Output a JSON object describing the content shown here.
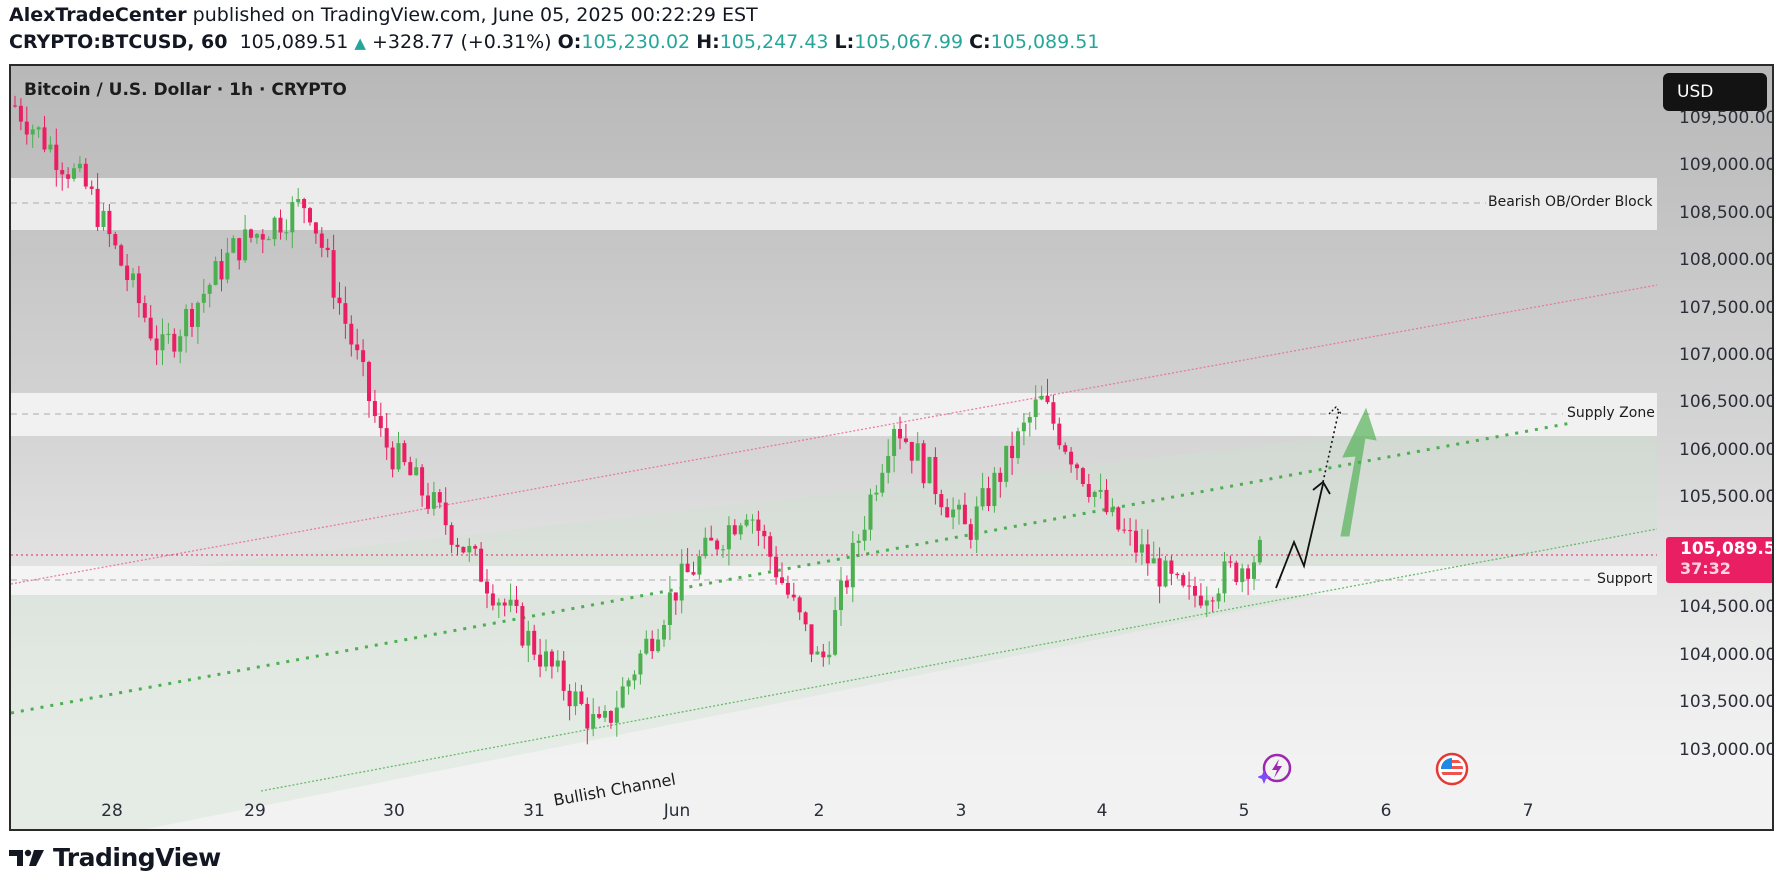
{
  "header": {
    "author": "AlexTradeCenter",
    "published_text": "published on TradingView.com, June 05, 2025 00:22:29 EST",
    "symbol": "CRYPTO:BTCUSD, 60",
    "last": "105,089.51",
    "change_arrow": "▲",
    "change": "+328.77 (+0.31%)",
    "o_label": "O:",
    "o": "105,230.02",
    "h_label": "H:",
    "h": "105,247.43",
    "l_label": "L:",
    "l": "105,067.99",
    "c_label": "C:",
    "c": "105,089.51"
  },
  "chart": {
    "title": "Bitcoin / U.S. Dollar · 1h · CRYPTO",
    "currency_button": "USD",
    "last_price_tag": "105,089.51",
    "countdown": "37:32",
    "colors": {
      "up": "#4caf50",
      "down": "#e91e63",
      "last_price": "#e91e63",
      "support_line": "#66bb6a",
      "resistance_line": "#e57399"
    },
    "zone_labels": {
      "bearish_ob": "Bearish OB/Order Block",
      "supply": "Supply Zone",
      "support": "Support",
      "channel": "Bullish Channel"
    },
    "price_axis": [
      "109,500.00",
      "109,000.00",
      "108,500.00",
      "108,000.00",
      "107,500.00",
      "107,000.00",
      "106,500.00",
      "106,000.00",
      "105,500.00",
      "104,500.00",
      "104,000.00",
      "103,500.00",
      "103,000.00"
    ],
    "time_axis": [
      "28",
      "29",
      "30",
      "31",
      "Jun",
      "2",
      "3",
      "4",
      "5",
      "6",
      "7"
    ],
    "event_icons": [
      "lightning-event-icon",
      "us-flag-event-icon"
    ]
  },
  "footer": {
    "brand": "TradingView"
  },
  "chart_data": {
    "type": "candlestick",
    "title": "Bitcoin / U.S. Dollar · 1h · CRYPTO",
    "xlabel": "",
    "ylabel": "USD",
    "x_ticks": [
      "28",
      "29",
      "30",
      "31",
      "Jun",
      "2",
      "3",
      "4",
      "5",
      "6",
      "7"
    ],
    "y_ticks": [
      103000,
      103500,
      104000,
      104500,
      105000,
      105500,
      106000,
      106500,
      107000,
      107500,
      108000,
      108500,
      109000,
      109500
    ],
    "ylim": [
      102600,
      110200
    ],
    "last_price": 105089.51,
    "ohlc_last": {
      "open": 105230.02,
      "high": 105247.43,
      "low": 105067.99,
      "close": 105089.51,
      "change": 328.77,
      "change_pct": 0.31
    },
    "zones": [
      {
        "name": "Bearish OB/Order Block",
        "from": 108500,
        "to": 109050,
        "line": 108750
      },
      {
        "name": "Supply Zone",
        "from": 106300,
        "to": 106750,
        "line": 106550
      },
      {
        "name": "Support",
        "from": 104650,
        "to": 104950,
        "line": 104800
      }
    ],
    "channel": {
      "name": "Bullish Channel",
      "lower_start": [
        "May 29",
        102600
      ],
      "lower_end": [
        "Jun 7",
        105350
      ],
      "upper_start": [
        "May 27",
        104800
      ],
      "upper_end": [
        "Jun 7",
        107900
      ],
      "mid_dotted_start": [
        "May 27",
        103400
      ],
      "mid_dotted_end": [
        "Jun 6",
        106400
      ]
    },
    "approx_path": [
      {
        "date": "May 27",
        "price": 109800
      },
      {
        "date": "May 28",
        "price": 108900
      },
      {
        "date": "May 28 PM",
        "price": 107200
      },
      {
        "date": "May 29",
        "price": 108300
      },
      {
        "date": "May 29 PM",
        "price": 108800
      },
      {
        "date": "May 30",
        "price": 106300
      },
      {
        "date": "May 30 PM",
        "price": 105300
      },
      {
        "date": "May 31",
        "price": 104200
      },
      {
        "date": "May 31 AM",
        "price": 103200
      },
      {
        "date": "Jun 1",
        "price": 104700
      },
      {
        "date": "Jun 2",
        "price": 105600
      },
      {
        "date": "Jun 2 PM",
        "price": 103900
      },
      {
        "date": "Jun 3",
        "price": 106500
      },
      {
        "date": "Jun 3 PM",
        "price": 105300
      },
      {
        "date": "Jun 4",
        "price": 106700
      },
      {
        "date": "Jun 4 PM",
        "price": 105400
      },
      {
        "date": "Jun 5",
        "price": 104600
      },
      {
        "date": "Jun 5 now",
        "price": 105089.51
      }
    ],
    "projection": "zig-zag up from Support toward Supply Zone (~106,500)"
  }
}
